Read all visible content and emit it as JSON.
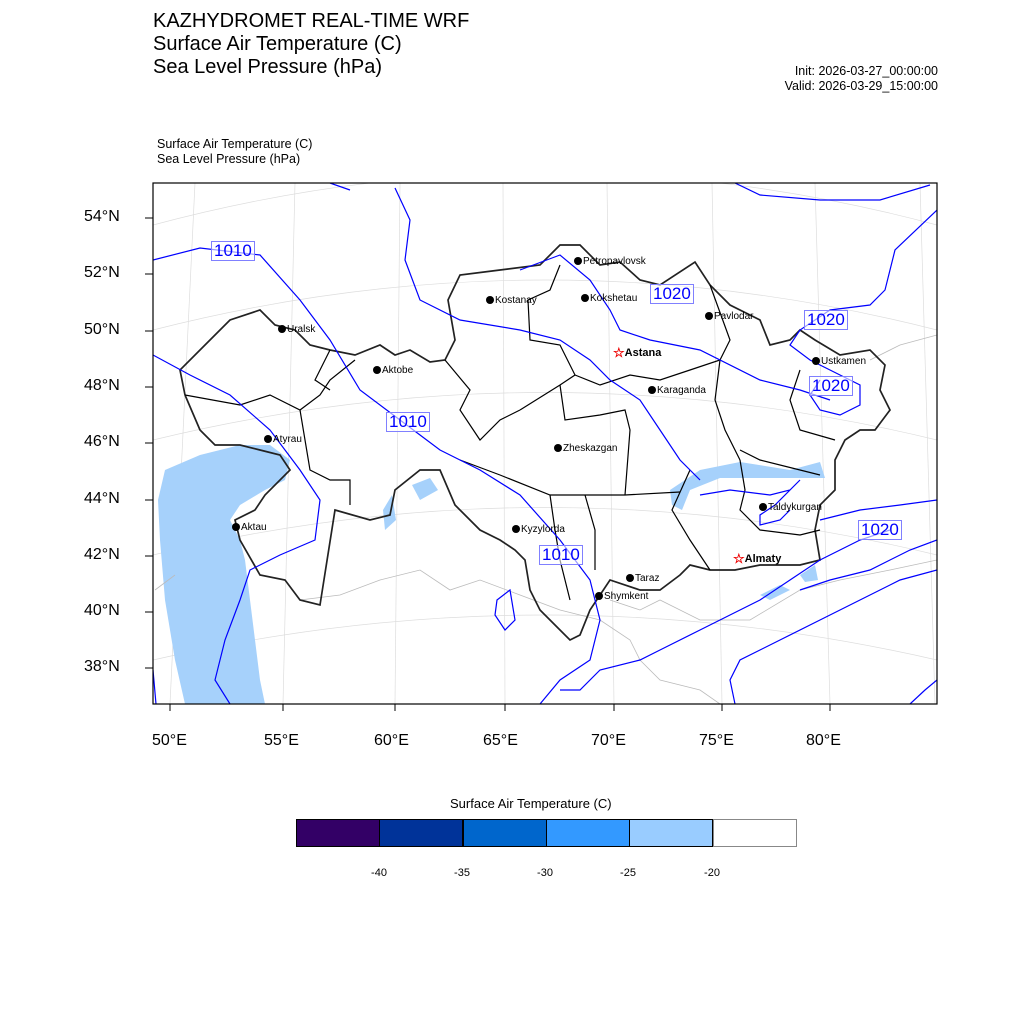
{
  "header": {
    "title_lines": [
      "KAZHYDROMET REAL-TIME WRF",
      "Surface Air Temperature  (C)",
      "Sea Level Pressure  (hPa)"
    ],
    "init": "Init: 2026-03-27_00:00:00",
    "valid": "Valid: 2026-03-29_15:00:00"
  },
  "plot": {
    "subtitle_lines": [
      "Surface Air Temperature   (C)",
      "Sea Level Pressure   (hPa)"
    ],
    "lat_ticks": [
      "54°N",
      "52°N",
      "50°N",
      "48°N",
      "46°N",
      "44°N",
      "42°N",
      "40°N",
      "38°N"
    ],
    "lon_ticks": [
      "50°E",
      "55°E",
      "60°E",
      "65°E",
      "70°E",
      "75°E",
      "80°E"
    ],
    "contour_labels": [
      "1010",
      "1020",
      "1020",
      "1020",
      "1010",
      "1010",
      "1020"
    ],
    "cities": [
      "Petropavlovsk",
      "Kostanay",
      "Kokshetau",
      "Pavlodar",
      "Uralsk",
      "Astana",
      "Ustkamen",
      "Aktobe",
      "Karaganda",
      "Atyrau",
      "Zheskazgan",
      "Taldykurgan",
      "Aktau",
      "Kyzylorda",
      "Almaty",
      "Taraz",
      "Shymkent"
    ]
  },
  "colorbar": {
    "title": "Surface Air Temperature (C)",
    "colors": [
      "#330066",
      "#003399",
      "#0066cc",
      "#3399ff",
      "#99ccff",
      "#ffffff"
    ],
    "labels": [
      "-40",
      "-35",
      "-30",
      "-25",
      "-20"
    ]
  }
}
